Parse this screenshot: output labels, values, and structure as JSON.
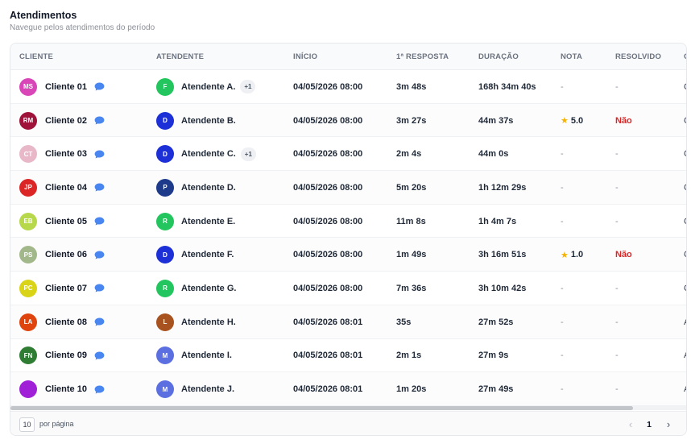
{
  "header": {
    "title": "Atendimentos",
    "subtitle": "Navegue pelos atendimentos do período"
  },
  "table": {
    "columns": [
      "CLIENTE",
      "ATENDENTE",
      "INÍCIO",
      "1ª RESPOSTA",
      "DURAÇÃO",
      "NOTA",
      "RESOLVIDO",
      "C"
    ],
    "rows": [
      {
        "client": {
          "initials": "MS",
          "name": "Cliente 01",
          "color": "#d946b8"
        },
        "agent": {
          "initial": "F",
          "name": "Atendente A.",
          "color": "#22c55e",
          "extra": "+1"
        },
        "inicio": "04/05/2026 08:00",
        "resposta": "3m 48s",
        "duracao": "168h 34m 40s",
        "nota": "-",
        "resolvido": "-",
        "last": "C"
      },
      {
        "client": {
          "initials": "RM",
          "name": "Cliente 02",
          "color": "#9f1239"
        },
        "agent": {
          "initial": "D",
          "name": "Atendente B.",
          "color": "#1d2fd6",
          "extra": ""
        },
        "inicio": "04/05/2026 08:00",
        "resposta": "3m 27s",
        "duracao": "44m 37s",
        "nota": "5.0",
        "resolvido": "Não",
        "last": "C"
      },
      {
        "client": {
          "initials": "CT",
          "name": "Cliente 03",
          "color": "#e8b7c8"
        },
        "agent": {
          "initial": "D",
          "name": "Atendente C.",
          "color": "#1d2fd6",
          "extra": "+1"
        },
        "inicio": "04/05/2026 08:00",
        "resposta": "2m 4s",
        "duracao": "44m 0s",
        "nota": "-",
        "resolvido": "-",
        "last": "C"
      },
      {
        "client": {
          "initials": "JP",
          "name": "Cliente 04",
          "color": "#dc2626"
        },
        "agent": {
          "initial": "P",
          "name": "Atendente D.",
          "color": "#1e3a8a",
          "extra": ""
        },
        "inicio": "04/05/2026 08:00",
        "resposta": "5m 20s",
        "duracao": "1h 12m 29s",
        "nota": "-",
        "resolvido": "-",
        "last": "C"
      },
      {
        "client": {
          "initials": "EB",
          "name": "Cliente 05",
          "color": "#b7d84a"
        },
        "agent": {
          "initial": "R",
          "name": "Atendente E.",
          "color": "#22c55e",
          "extra": ""
        },
        "inicio": "04/05/2026 08:00",
        "resposta": "11m 8s",
        "duracao": "1h 4m 7s",
        "nota": "-",
        "resolvido": "-",
        "last": "C"
      },
      {
        "client": {
          "initials": "PS",
          "name": "Cliente 06",
          "color": "#a3b88a"
        },
        "agent": {
          "initial": "D",
          "name": "Atendente F.",
          "color": "#1d2fd6",
          "extra": ""
        },
        "inicio": "04/05/2026 08:00",
        "resposta": "1m 49s",
        "duracao": "3h 16m 51s",
        "nota": "1.0",
        "resolvido": "Não",
        "last": "C"
      },
      {
        "client": {
          "initials": "PC",
          "name": "Cliente 07",
          "color": "#d9d418"
        },
        "agent": {
          "initial": "R",
          "name": "Atendente G.",
          "color": "#22c55e",
          "extra": ""
        },
        "inicio": "04/05/2026 08:00",
        "resposta": "7m 36s",
        "duracao": "3h 10m 42s",
        "nota": "-",
        "resolvido": "-",
        "last": "C"
      },
      {
        "client": {
          "initials": "LA",
          "name": "Cliente 08",
          "color": "#e0440e"
        },
        "agent": {
          "initial": "L",
          "name": "Atendente H.",
          "color": "#a8531f",
          "extra": ""
        },
        "inicio": "04/05/2026 08:01",
        "resposta": "35s",
        "duracao": "27m 52s",
        "nota": "-",
        "resolvido": "-",
        "last": "A"
      },
      {
        "client": {
          "initials": "FN",
          "name": "Cliente 09",
          "color": "#2f7d32"
        },
        "agent": {
          "initial": "M",
          "name": "Atendente I.",
          "color": "#5b6fe0",
          "extra": ""
        },
        "inicio": "04/05/2026 08:01",
        "resposta": "2m 1s",
        "duracao": "27m 9s",
        "nota": "-",
        "resolvido": "-",
        "last": "A"
      },
      {
        "client": {
          "initials": "",
          "name": "Cliente 10",
          "color": "#a020d8"
        },
        "agent": {
          "initial": "M",
          "name": "Atendente J.",
          "color": "#5b6fe0",
          "extra": ""
        },
        "inicio": "04/05/2026 08:01",
        "resposta": "1m 20s",
        "duracao": "27m 49s",
        "nota": "-",
        "resolvido": "-",
        "last": "A"
      }
    ]
  },
  "icons": {
    "chat": "chat-bubble-icon",
    "star": "star-icon",
    "prev": "chevron-left-icon",
    "next": "chevron-right-icon"
  },
  "colors": {
    "chat_icon": "#4a86f0",
    "star": "#f5b301",
    "negative": "#dc2626"
  },
  "footer": {
    "per_page_value": "10",
    "per_page_label": "por página",
    "prev_glyph": "‹",
    "current_page": "1",
    "next_glyph": "›"
  }
}
